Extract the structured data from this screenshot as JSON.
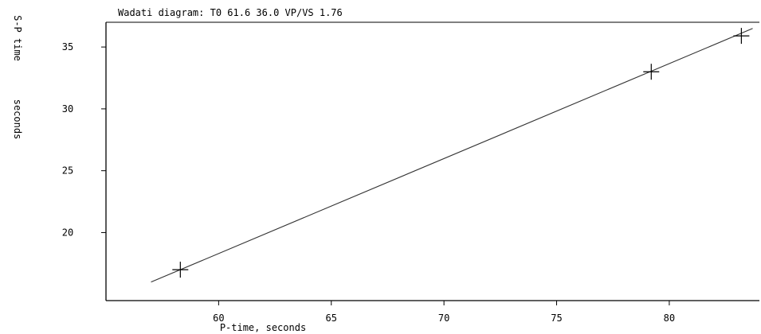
{
  "chart_data": {
    "type": "scatter",
    "title": "Wadati diagram:  T0  61.6  36.0  VP/VS   1.76",
    "xlabel": "P-time, seconds",
    "ylabel_lines": [
      "S-P time",
      "seconds"
    ],
    "xlim": [
      55.0,
      84.0
    ],
    "ylim": [
      14.5,
      37.0
    ],
    "xticks": [
      60,
      65,
      70,
      75,
      80
    ],
    "yticks": [
      20,
      25,
      30,
      35
    ],
    "series": [
      {
        "marker": "+",
        "x": [
          58.3,
          79.2,
          83.2
        ],
        "y": [
          17.0,
          33.0,
          35.9
        ]
      }
    ],
    "fit_line": {
      "x": [
        57.0,
        83.7
      ],
      "y": [
        16.0,
        36.5
      ]
    },
    "grid": false,
    "legend": "none"
  }
}
